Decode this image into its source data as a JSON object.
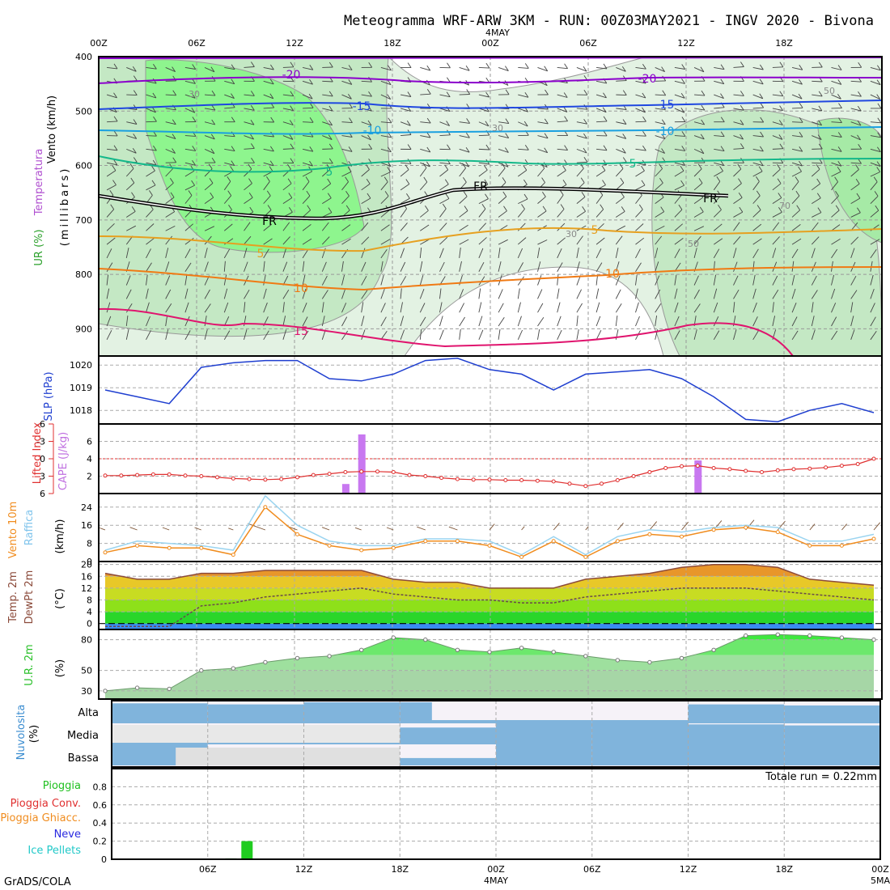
{
  "title": "Meteogramma WRF-ARW 3KM - RUN: 00Z03MAY2021 - INGV 2020 - Bivona",
  "credit": "GrADS/COLA",
  "time_axis": {
    "top_ticks": [
      "00Z",
      "06Z",
      "12Z",
      "18Z",
      "00Z",
      "06Z",
      "12Z",
      "18Z"
    ],
    "top_date": "4MAY",
    "bottom_ticks": [
      "06Z",
      "12Z",
      "18Z",
      "00Z",
      "06Z",
      "12Z",
      "18Z",
      "00Z"
    ],
    "bottom_dates": [
      "4MAY",
      "5MA"
    ]
  },
  "colors": {
    "rh_light": "#e3f2e3",
    "rh_mid": "#c4e8c4",
    "rh_dark": "#8ef58e",
    "temp_m20": "#8b00cc",
    "temp_m15": "#1f47e0",
    "temp_m10": "#1aa0e0",
    "temp_m5": "#14b88a",
    "temp_5": "#e6a020",
    "temp_10": "#f07a14",
    "temp_15": "#e0146e",
    "slp": "#1f3fd0",
    "li": "#e03030",
    "cape": "#c878f0",
    "wind10m": "#f08c1e",
    "gust": "#9ad4f0",
    "wind_arrow": "#7a5030",
    "temp_fill": "#e8962a",
    "temp_line": "#8b4a3a",
    "rh2m_fill": "#3ee83e",
    "cloud": "#80b4dc",
    "rain": "#20cc20"
  },
  "panels": {
    "upper_air": {
      "ylabel_wind": "Vento (km/h)",
      "ylabel_temp": "Temperatura",
      "ylabel_rh": "UR (%)",
      "ylabel_units": "(millibars)",
      "yticks": [
        "400",
        "500",
        "600",
        "700",
        "800",
        "900"
      ],
      "contour_labels": [
        "-20",
        "-20",
        "-15",
        "-15",
        "-10",
        "-10",
        "5",
        "5",
        "FR",
        "FR",
        "FR",
        "5",
        "5",
        "10",
        "10",
        "15",
        "30",
        "30",
        "30",
        "50",
        "50",
        "70"
      ]
    },
    "slp": {
      "ylabel": "SLP (hPa)",
      "yticks": [
        "1020",
        "1019",
        "1018"
      ]
    },
    "li_cape": {
      "ylabel_li": "Lifted Index",
      "ylabel_cape": "CAPE (J/kg)",
      "li_ticks": [
        "-6",
        "-3",
        "0",
        "3",
        "6"
      ],
      "cape_ticks": [
        "6",
        "4",
        "2"
      ]
    },
    "wind10m": {
      "ylabel_wind": "Vento 10m",
      "ylabel_gust": "Raffica",
      "ylabel_units": "(km/h)",
      "yticks": [
        "24",
        "16",
        "8",
        "0"
      ]
    },
    "temp2m": {
      "ylabel_temp": "Temp. 2m",
      "ylabel_dew": "DewPt 2m",
      "ylabel_units": "(°C)",
      "yticks": [
        "20",
        "16",
        "12",
        "8",
        "4",
        "0"
      ]
    },
    "rh2m": {
      "ylabel": "U.R. 2m",
      "ylabel_units": "(%)",
      "yticks": [
        "80",
        "50",
        "30"
      ]
    },
    "cloud": {
      "ylabel": "Nuvolosita",
      "ylabel_units": "(%)",
      "levels": [
        "Alta",
        "Media",
        "Bassa"
      ]
    },
    "precip": {
      "legend": [
        "Pioggia",
        "Pioggia Conv.",
        "Pioggia Ghiacc.",
        "Neve",
        "Ice Pellets"
      ],
      "yticks": [
        "0.8",
        "0.6",
        "0.4",
        "0.2",
        "0"
      ],
      "total": "Totale run = 0.22mm"
    }
  },
  "chart_data": [
    {
      "type": "line",
      "name": "Sea level pressure",
      "ylabel": "SLP (hPa)",
      "x": [
        0,
        2,
        4,
        6,
        8,
        10,
        12,
        14,
        16,
        18,
        20,
        22,
        24,
        26,
        28,
        30,
        32,
        34,
        36,
        38,
        40,
        42,
        44,
        46,
        48
      ],
      "values": [
        1018.9,
        1018.6,
        1018.3,
        1019.9,
        1020.1,
        1020.2,
        1020.2,
        1019.4,
        1019.3,
        1019.6,
        1020.2,
        1020.3,
        1019.8,
        1019.6,
        1018.9,
        1019.6,
        1019.7,
        1019.8,
        1019.4,
        1018.6,
        1017.6,
        1017.5,
        1018.0,
        1018.3,
        1017.9
      ],
      "ylim": [
        1017.4,
        1020.4
      ]
    },
    {
      "type": "line",
      "name": "Lifted Index / CAPE",
      "x": [
        0,
        1,
        2,
        3,
        4,
        5,
        6,
        7,
        8,
        9,
        10,
        11,
        12,
        13,
        14,
        15,
        16,
        17,
        18,
        19,
        20,
        21,
        22,
        23,
        24,
        25,
        26,
        27,
        28,
        29,
        30,
        31,
        32,
        33,
        34,
        35,
        36,
        37,
        38,
        39,
        40,
        41,
        42,
        43,
        44,
        45,
        46,
        47,
        48
      ],
      "lifted_index": [
        2.9,
        2.9,
        2.8,
        2.7,
        2.7,
        2.9,
        3.0,
        3.2,
        3.4,
        3.5,
        3.6,
        3.5,
        3.2,
        2.8,
        2.6,
        2.3,
        2.2,
        2.2,
        2.3,
        2.8,
        3.0,
        3.3,
        3.5,
        3.6,
        3.6,
        3.7,
        3.7,
        3.8,
        3.9,
        4.3,
        4.7,
        4.3,
        3.7,
        3.0,
        2.3,
        1.6,
        1.3,
        1.2,
        1.6,
        1.8,
        2.1,
        2.3,
        2.0,
        1.8,
        1.7,
        1.5,
        1.2,
        0.9,
        0.0
      ],
      "cape_bars": [
        {
          "x": 15,
          "value": 1.1
        },
        {
          "x": 16,
          "value": 6.8
        },
        {
          "x": 37,
          "value": 3.8
        }
      ],
      "li_ylim": [
        6,
        -6
      ],
      "cape_ylim": [
        0,
        8
      ]
    },
    {
      "type": "line",
      "name": "Wind 10m",
      "ylabel": "(km/h)",
      "x": [
        0,
        2,
        4,
        6,
        8,
        10,
        12,
        14,
        16,
        18,
        20,
        22,
        24,
        26,
        28,
        30,
        32,
        34,
        36,
        38,
        40,
        42,
        44,
        46,
        48
      ],
      "wind10m": [
        4,
        7,
        6,
        6,
        3,
        24,
        12,
        7,
        5,
        6,
        9,
        9,
        7,
        2,
        9,
        2,
        9,
        12,
        11,
        14,
        15,
        13,
        7,
        7,
        10
      ],
      "gust": [
        5,
        9,
        8,
        7,
        5,
        29,
        16,
        9,
        7,
        7,
        10,
        10,
        9,
        3,
        11,
        3,
        11,
        14,
        13,
        15,
        16,
        15,
        9,
        9,
        12
      ],
      "ylim": [
        0,
        30
      ]
    },
    {
      "type": "area",
      "name": "Temperature 2m / Dew point 2m",
      "ylabel": "(°C)",
      "x": [
        0,
        2,
        4,
        6,
        8,
        10,
        12,
        14,
        16,
        18,
        20,
        22,
        24,
        26,
        28,
        30,
        32,
        34,
        36,
        38,
        40,
        42,
        44,
        46,
        48
      ],
      "temp2m": [
        17,
        15,
        15,
        17,
        17,
        18,
        18,
        18,
        18,
        15,
        14,
        14,
        12,
        12,
        12,
        15,
        16,
        17,
        19,
        20,
        20,
        19,
        15,
        14,
        13
      ],
      "dewpoint2m": [
        -1,
        -1,
        -1,
        6,
        7,
        9,
        10,
        11,
        12,
        10,
        9,
        8,
        8,
        7,
        7,
        9,
        10,
        11,
        12,
        12,
        12,
        11,
        10,
        9,
        8
      ],
      "ylim": [
        -2,
        21
      ]
    },
    {
      "type": "area",
      "name": "Relative humidity 2m",
      "ylabel": "(%)",
      "x": [
        0,
        2,
        4,
        6,
        8,
        10,
        12,
        14,
        16,
        18,
        20,
        22,
        24,
        26,
        28,
        30,
        32,
        34,
        36,
        38,
        40,
        42,
        44,
        46,
        48
      ],
      "values": [
        30,
        33,
        32,
        50,
        52,
        58,
        62,
        64,
        70,
        82,
        80,
        70,
        68,
        72,
        68,
        64,
        60,
        58,
        62,
        70,
        84,
        85,
        84,
        82,
        80
      ],
      "ylim": [
        22,
        90
      ]
    },
    {
      "type": "area",
      "name": "Cloud cover",
      "x": [
        0,
        6,
        12,
        18,
        24,
        30,
        36,
        42,
        48
      ],
      "alta": [
        95,
        90,
        100,
        100,
        60,
        60,
        90,
        85,
        90
      ],
      "media": [
        90,
        90,
        85,
        80,
        100,
        100,
        95,
        90,
        95
      ],
      "bassa": [
        100,
        70,
        40,
        35,
        100,
        100,
        100,
        100,
        100
      ]
    },
    {
      "type": "bar",
      "name": "Precipitation",
      "x": [
        7,
        8
      ],
      "values": [
        0.01,
        0.2
      ],
      "ylim": [
        0,
        1.0
      ]
    }
  ]
}
